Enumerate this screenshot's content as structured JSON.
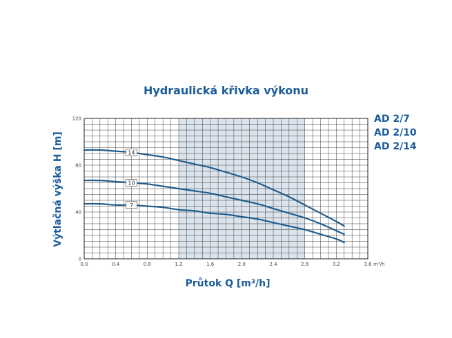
{
  "title": "Hydraulická křivka výkonu",
  "xlabel": "Průtok Q [m³/h]",
  "ylabel": "Výtlačná výška H [m]",
  "models": [
    "AD 2/7",
    "AD 2/10",
    "AD 2/14"
  ],
  "colors": {
    "curve": "#1f5d8e",
    "accent": "#1c5c9b",
    "band": "#dbe3ec",
    "grid": "#3a3a3a"
  },
  "chart_data": {
    "type": "line",
    "title": "Hydraulická křivka výkonu",
    "xlabel": "Průtok Q [m³/h]",
    "ylabel": "Výtlačná výška H [m]",
    "x_unit": "m³/h",
    "xlim": [
      0,
      3.6
    ],
    "ylim": [
      0,
      120
    ],
    "xticks": [
      "0.0",
      "0.4",
      "0.8",
      "1.2",
      "1.6",
      "2.0",
      "2.4",
      "2.8",
      "3.2",
      "3.6"
    ],
    "xtick_values": [
      0,
      0.4,
      0.8,
      1.2,
      1.6,
      2.0,
      2.4,
      2.8,
      3.2,
      3.6
    ],
    "yticks": [
      "0",
      "40",
      "80",
      "120"
    ],
    "ytick_values": [
      0,
      40,
      80,
      120
    ],
    "grid": true,
    "recommended_range": [
      1.2,
      2.8
    ],
    "series": [
      {
        "name": "14",
        "x": [
          0,
          0.2,
          0.4,
          0.6,
          0.8,
          1.0,
          1.2,
          1.4,
          1.6,
          1.8,
          2.0,
          2.2,
          2.4,
          2.6,
          2.8,
          3.0,
          3.2,
          3.3
        ],
        "values": [
          93,
          93,
          92,
          91,
          89,
          87,
          84,
          81,
          78,
          74,
          70,
          65,
          59,
          53,
          46,
          39,
          32,
          28
        ]
      },
      {
        "name": "10",
        "x": [
          0,
          0.2,
          0.4,
          0.6,
          0.8,
          1.0,
          1.2,
          1.4,
          1.6,
          1.8,
          2.0,
          2.2,
          2.4,
          2.6,
          2.8,
          3.0,
          3.2,
          3.3
        ],
        "values": [
          67,
          67,
          66,
          65,
          64,
          62,
          60,
          58,
          56,
          53,
          50,
          47,
          43,
          39,
          35,
          30,
          24,
          21
        ]
      },
      {
        "name": "7",
        "x": [
          0,
          0.2,
          0.4,
          0.6,
          0.8,
          1.0,
          1.2,
          1.4,
          1.6,
          1.8,
          2.0,
          2.2,
          2.4,
          2.6,
          2.8,
          3.0,
          3.2,
          3.3
        ],
        "values": [
          47,
          47,
          46,
          46,
          45,
          44,
          42,
          41,
          39,
          38,
          36,
          34,
          31,
          28,
          25,
          21,
          17,
          14
        ]
      }
    ]
  }
}
